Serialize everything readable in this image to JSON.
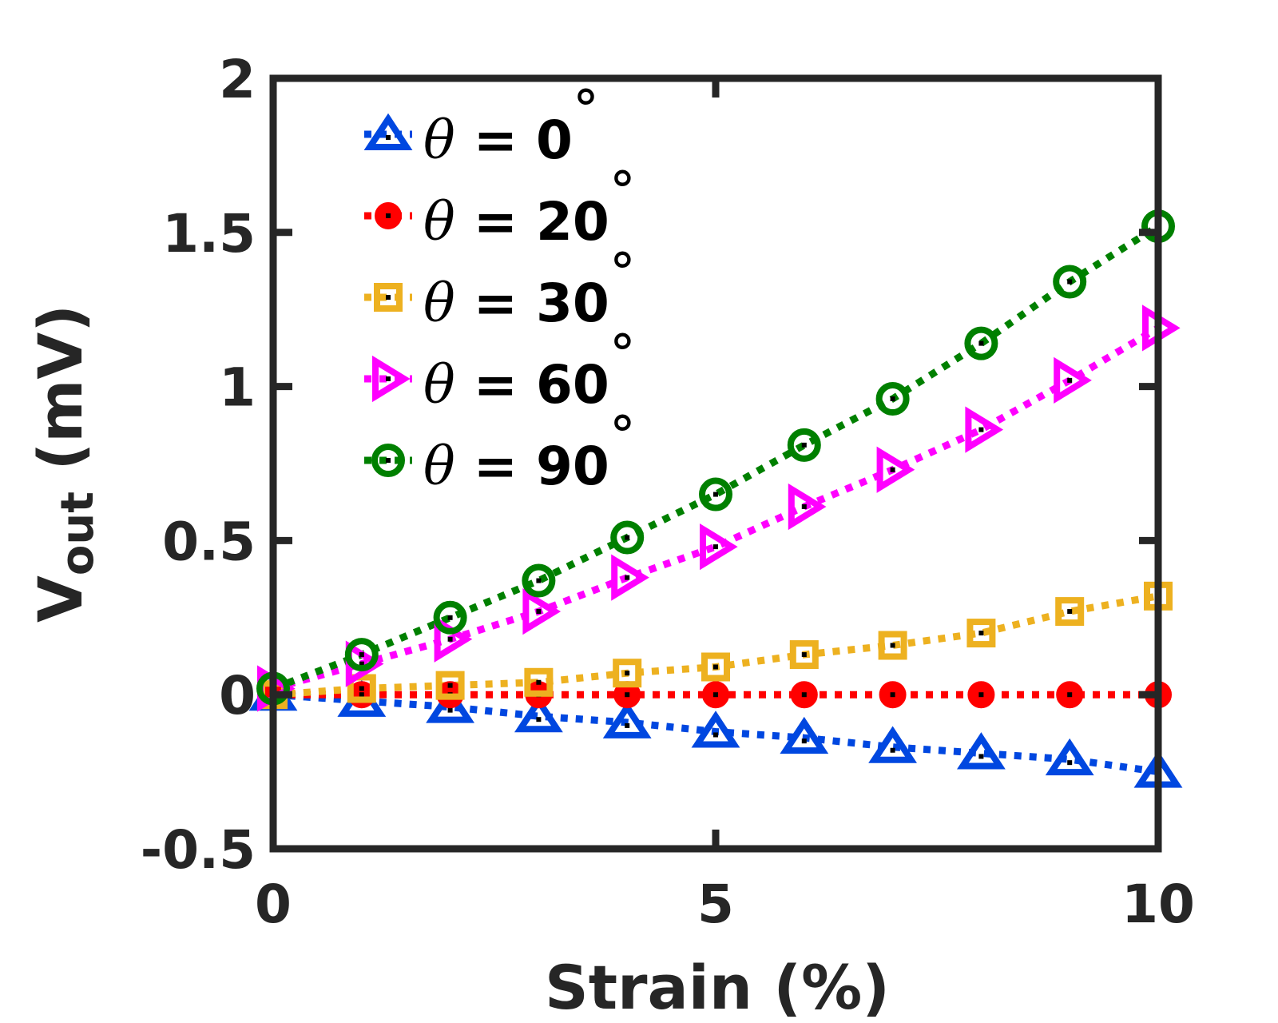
{
  "chart_data": {
    "type": "line",
    "xlabel": "Strain (%)",
    "ylabel_main": "V",
    "ylabel_sub": "out",
    "ylabel_unit": " (mV)",
    "xlim": [
      0,
      10
    ],
    "ylim": [
      -0.5,
      2
    ],
    "xticks": [
      0,
      5,
      10
    ],
    "xtick_labels": [
      "0",
      "5",
      "10"
    ],
    "yticks": [
      -0.5,
      0,
      0.5,
      1,
      1.5,
      2
    ],
    "ytick_labels": [
      "-0.5",
      "0",
      "0.5",
      "1",
      "1.5",
      "2"
    ],
    "grid": false,
    "legend_position": "top-left",
    "x": [
      0,
      1,
      2,
      3,
      4,
      5,
      6,
      7,
      8,
      9,
      10
    ],
    "series": [
      {
        "name": "θ = 0°",
        "theta": "θ",
        "label_text": " = 0",
        "degree": "°",
        "color": "#0047E0",
        "marker": "triangle-up",
        "values": [
          0.0,
          -0.02,
          -0.04,
          -0.07,
          -0.09,
          -0.12,
          -0.14,
          -0.17,
          -0.19,
          -0.21,
          -0.25
        ]
      },
      {
        "name": "θ = 20°",
        "theta": "θ",
        "label_text": " = 20",
        "degree": "°",
        "color": "#FF0000",
        "marker": "circle-filled",
        "values": [
          0.0,
          0.0,
          0.0,
          0.0,
          0.0,
          0.0,
          0.0,
          0.0,
          0.0,
          0.0,
          0.0
        ]
      },
      {
        "name": "θ = 30°",
        "theta": "θ",
        "label_text": " = 30",
        "degree": "°",
        "color": "#EDB120",
        "marker": "square",
        "values": [
          0.0,
          0.02,
          0.03,
          0.04,
          0.07,
          0.09,
          0.13,
          0.16,
          0.2,
          0.27,
          0.32
        ]
      },
      {
        "name": "θ = 60°",
        "theta": "θ",
        "label_text": " = 60",
        "degree": "°",
        "color": "#FF00FF",
        "marker": "triangle-right",
        "values": [
          0.02,
          0.1,
          0.18,
          0.27,
          0.38,
          0.48,
          0.61,
          0.73,
          0.86,
          1.02,
          1.19
        ]
      },
      {
        "name": "θ = 90°",
        "theta": "θ",
        "label_text": " = 90",
        "degree": "°",
        "color": "#008000",
        "marker": "circle-open",
        "values": [
          0.02,
          0.13,
          0.25,
          0.37,
          0.51,
          0.65,
          0.81,
          0.96,
          1.14,
          1.34,
          1.52
        ]
      }
    ]
  }
}
